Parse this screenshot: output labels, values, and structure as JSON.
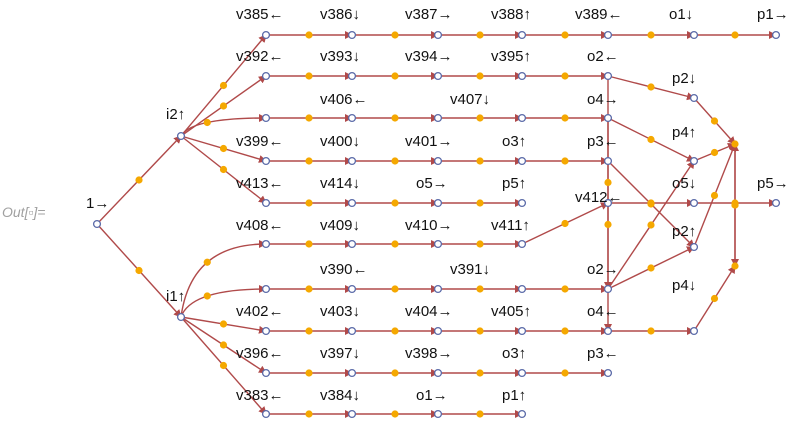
{
  "output_label": "Out[▫]=",
  "colors": {
    "edge": "#b04a4a",
    "vertex_stroke": "#5a6aa8",
    "midpoint": "#f5a800",
    "label": "#111111"
  },
  "labels": [
    {
      "id": "l-1",
      "text": "1→"
    },
    {
      "id": "l-i2",
      "text": "i2↑"
    },
    {
      "id": "l-i1",
      "text": "i1↑"
    },
    {
      "id": "l-v385",
      "text": "v385←"
    },
    {
      "id": "l-v386",
      "text": "v386↓"
    },
    {
      "id": "l-v387",
      "text": "v387→"
    },
    {
      "id": "l-v388",
      "text": "v388↑"
    },
    {
      "id": "l-v389",
      "text": "v389←"
    },
    {
      "id": "l-o1a",
      "text": "o1↓"
    },
    {
      "id": "l-p1a",
      "text": "p1→"
    },
    {
      "id": "l-v392",
      "text": "v392←"
    },
    {
      "id": "l-v393",
      "text": "v393↓"
    },
    {
      "id": "l-v394",
      "text": "v394→"
    },
    {
      "id": "l-v395",
      "text": "v395↑"
    },
    {
      "id": "l-o2a",
      "text": "o2←"
    },
    {
      "id": "l-p2a",
      "text": "p2↓"
    },
    {
      "id": "l-v406",
      "text": "v406←"
    },
    {
      "id": "l-v407",
      "text": "v407↓"
    },
    {
      "id": "l-o4a",
      "text": "o4→"
    },
    {
      "id": "l-p4a",
      "text": "p4↑"
    },
    {
      "id": "l-v399",
      "text": "v399←"
    },
    {
      "id": "l-v400",
      "text": "v400↓"
    },
    {
      "id": "l-v401",
      "text": "v401→"
    },
    {
      "id": "l-o3a",
      "text": "o3↑"
    },
    {
      "id": "l-p3a",
      "text": "p3←"
    },
    {
      "id": "l-v413",
      "text": "v413←"
    },
    {
      "id": "l-v414",
      "text": "v414↓"
    },
    {
      "id": "l-o5",
      "text": "o5→"
    },
    {
      "id": "l-p5a",
      "text": "p5↑"
    },
    {
      "id": "l-o5b",
      "text": "o5↓"
    },
    {
      "id": "l-p5b",
      "text": "p5→"
    },
    {
      "id": "l-v412",
      "text": "v412←"
    },
    {
      "id": "l-v408",
      "text": "v408←"
    },
    {
      "id": "l-v409",
      "text": "v409↓"
    },
    {
      "id": "l-v410",
      "text": "v410→"
    },
    {
      "id": "l-v411",
      "text": "v411↑"
    },
    {
      "id": "l-p2b",
      "text": "p2↑"
    },
    {
      "id": "l-v390",
      "text": "v390←"
    },
    {
      "id": "l-v391",
      "text": "v391↓"
    },
    {
      "id": "l-o2b",
      "text": "o2→"
    },
    {
      "id": "l-p4b",
      "text": "p4↓"
    },
    {
      "id": "l-v402",
      "text": "v402←"
    },
    {
      "id": "l-v403",
      "text": "v403↓"
    },
    {
      "id": "l-v404",
      "text": "v404→"
    },
    {
      "id": "l-v405",
      "text": "v405↑"
    },
    {
      "id": "l-o4b",
      "text": "o4←"
    },
    {
      "id": "l-v396",
      "text": "v396←"
    },
    {
      "id": "l-v397",
      "text": "v397↓"
    },
    {
      "id": "l-v398",
      "text": "v398→"
    },
    {
      "id": "l-o3b",
      "text": "o3↑"
    },
    {
      "id": "l-p3b",
      "text": "p3←"
    },
    {
      "id": "l-v383",
      "text": "v383←"
    },
    {
      "id": "l-v384",
      "text": "v384↓"
    },
    {
      "id": "l-o1b",
      "text": "o1→"
    },
    {
      "id": "l-p1b",
      "text": "p1↑"
    }
  ]
}
